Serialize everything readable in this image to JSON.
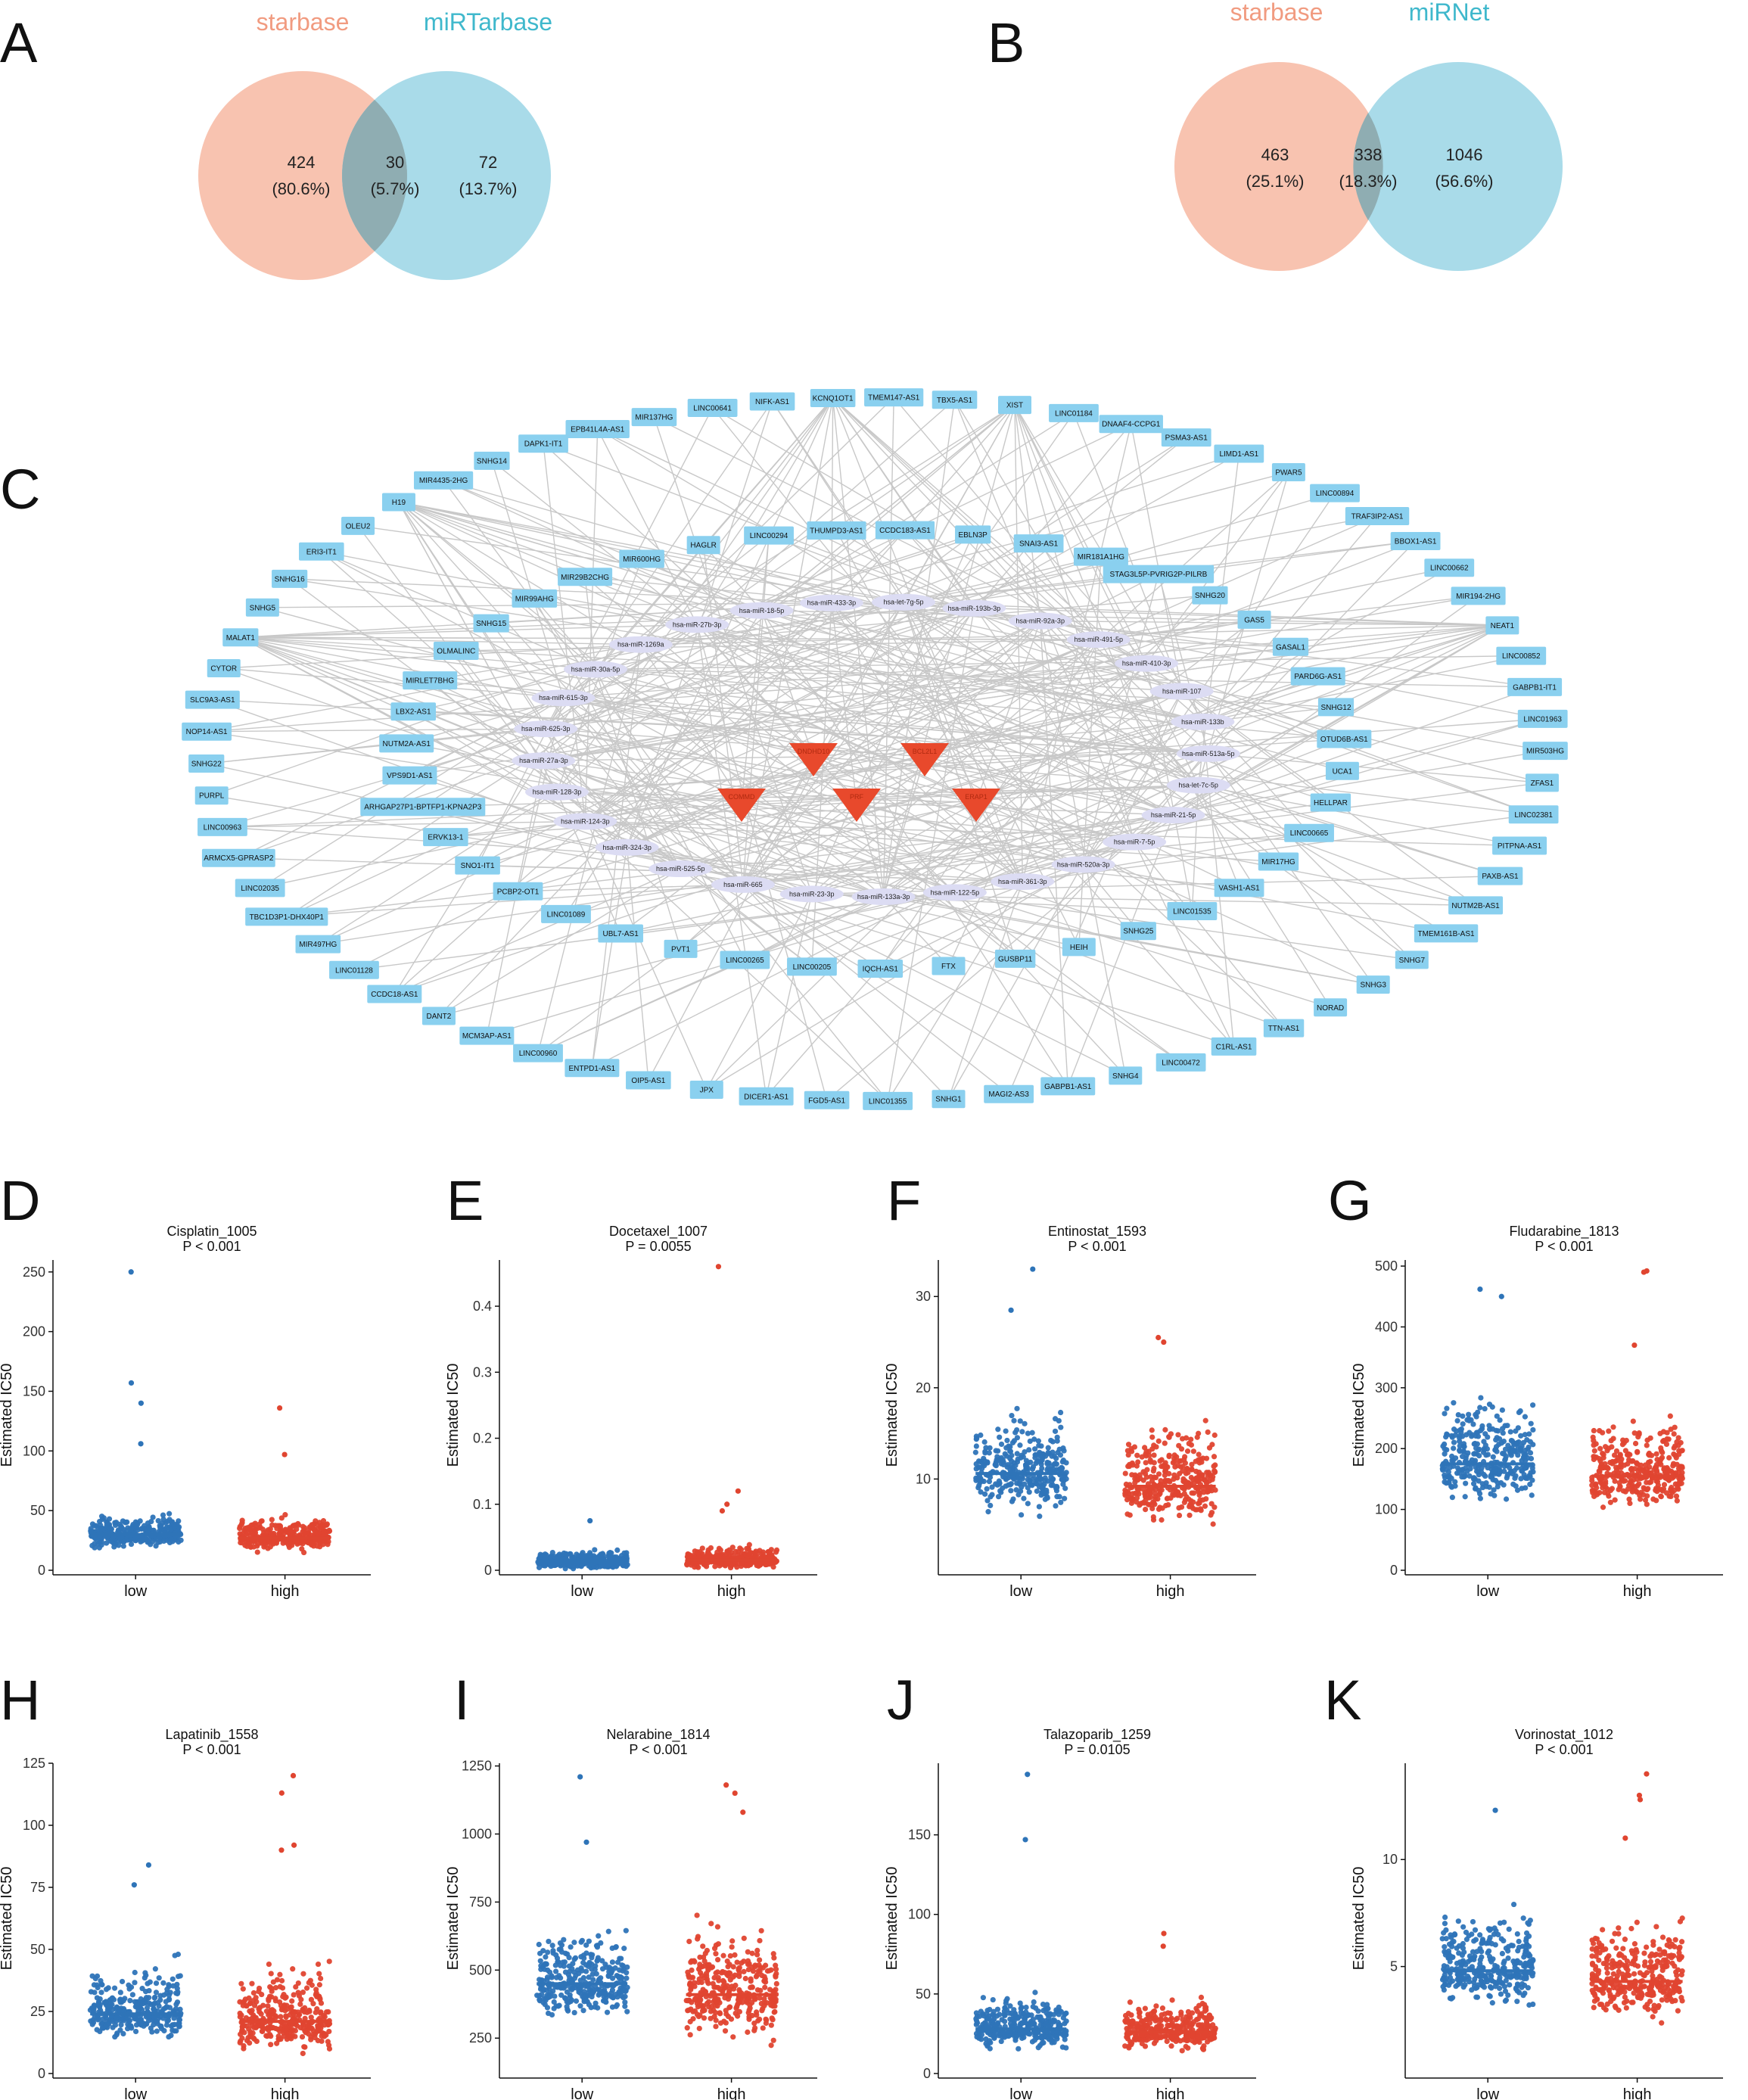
{
  "figure": {
    "panels": [
      "A",
      "B",
      "C",
      "D",
      "E",
      "F",
      "G",
      "H",
      "I",
      "J",
      "K"
    ],
    "colors": {
      "left": "#f8c3b0",
      "right": "#a9dbe9",
      "overlap": "#8fadb2",
      "low": "#2e74b8",
      "high": "#e04530",
      "node": "#8ad0ef",
      "mirna": "#dcdcf3",
      "gene": "#e8492c",
      "edge": "#c8c8c8"
    }
  },
  "venn": [
    {
      "panel": "A",
      "left_title": "starbase",
      "right_title": "miRTarbase",
      "left_count": "424",
      "left_pct": "(80.6%)",
      "mid_count": "30",
      "mid_pct": "(5.7%)",
      "right_count": "72",
      "right_pct": "(13.7%)"
    },
    {
      "panel": "B",
      "left_title": "starbase",
      "right_title": "miRNet",
      "left_count": "463",
      "left_pct": "(25.1%)",
      "mid_count": "338",
      "mid_pct": "(18.3%)",
      "right_count": "1046",
      "right_pct": "(56.6%)"
    }
  ],
  "network": {
    "outer_nodes": [
      "XIST",
      "LINC01184",
      "DNAAF4-CCPG1",
      "PSMA3-AS1",
      "LIMD1-AS1",
      "PWAR5",
      "LINC00894",
      "TRAF3IP2-AS1",
      "BBOX1-AS1",
      "LINC00662",
      "MIR194-2HG",
      "NEAT1",
      "LINC00852",
      "GABPB1-IT1",
      "LINC01963",
      "MIR503HG",
      "ZFAS1",
      "LINC02381",
      "PITPNA-AS1",
      "PAXB-AS1",
      "NUTM2B-AS1",
      "TMEM161B-AS1",
      "SNHG7",
      "SNHG3",
      "NORAD",
      "TTN-AS1",
      "C1RL-AS1",
      "LINC00472",
      "SNHG4",
      "GABPB1-AS1",
      "MAGI2-AS3",
      "SNHG1",
      "LINC01355",
      "FGD5-AS1",
      "DICER1-AS1",
      "JPX",
      "OIP5-AS1",
      "ENTPD1-AS1",
      "LINC00960",
      "MCM3AP-AS1",
      "DANT2",
      "CCDC18-AS1",
      "LINC01128",
      "MIR497HG",
      "TBC1D3P1-DHX40P1",
      "LINC02035",
      "ARMCX5-GPRASP2",
      "LINC00963",
      "PURPL",
      "SNHG22",
      "NOP14-AS1",
      "SLC9A3-AS1",
      "CYTOR",
      "MALAT1",
      "SNHG5",
      "SNHG16",
      "ERI3-IT1",
      "OLEU2",
      "H19",
      "MIR4435-2HG",
      "SNHG14",
      "DAPK1-IT1",
      "EPB41L4A-AS1",
      "MIR137HG",
      "LINC00641",
      "NIFK-AS1",
      "KCNQ1OT1",
      "TMEM147-AS1",
      "TBX5-AS1"
    ],
    "inner_nodes": [
      "SNHG15",
      "MIR99AHG",
      "MIR29B2CHG",
      "MIR600HG",
      "HAGLR",
      "LINC00294",
      "THUMPD3-AS1",
      "CCDC183-AS1",
      "EBLN3P",
      "SNAI3-AS1",
      "MIR181A1HG",
      "STAG3L5P-PVRIG2P-PILRB",
      "SNHG20",
      "GAS5",
      "GASAL1",
      "PARD6G-AS1",
      "SNHG12",
      "OTUD6B-AS1",
      "UCA1",
      "HELLPAR",
      "LINC00665",
      "MIR17HG",
      "VASH1-AS1",
      "LINC01535",
      "SNHG25",
      "HEIH",
      "GUSBP11",
      "FTX",
      "IQCH-AS1",
      "LINC00205",
      "LINC00265",
      "PVT1",
      "UBL7-AS1",
      "LINC01089",
      "PCBP2-OT1",
      "SNO1-IT1",
      "ERVK13-1",
      "ARHGAP27P1-BPTFP1-KPNA2P3",
      "VPS9D1-AS1",
      "NUTM2A-AS1",
      "LBX2-AS1",
      "MIRLET7BHG",
      "OLMALINC"
    ],
    "mirnas": [
      "hsa-miR-18-5p",
      "hsa-miR-433-3p",
      "hsa-let-7g-5p",
      "hsa-miR-193b-3p",
      "hsa-miR-92a-3p",
      "hsa-miR-491-5p",
      "hsa-miR-410-3p",
      "hsa-miR-107",
      "hsa-miR-133b",
      "hsa-miR-513a-5p",
      "hsa-let-7c-5p",
      "hsa-miR-21-5p",
      "hsa-miR-7-5p",
      "hsa-miR-520a-3p",
      "hsa-miR-361-3p",
      "hsa-miR-122-5p",
      "hsa-miR-133a-3p",
      "hsa-miR-23-3p",
      "hsa-miR-665",
      "hsa-miR-525-5p",
      "hsa-miR-324-3p",
      "hsa-miR-124-3p",
      "hsa-miR-128-3p",
      "hsa-miR-27a-3p",
      "hsa-miR-625-3p",
      "hsa-miR-615-3p",
      "hsa-miR-30a-5p",
      "hsa-miR-1269a",
      "hsa-miR-27b-3p"
    ],
    "genes": [
      "DNDHD10",
      "BCL2L1",
      "COMMD",
      "PRF",
      "ERAP1"
    ]
  },
  "chart_data": [
    {
      "panel": "D",
      "type": "scatter",
      "title": "Cisplatin_1005",
      "subtitle": "P < 0.001",
      "ylabel": "Estimated IC50",
      "categories": [
        "low",
        "high"
      ],
      "ylim": [
        0,
        260
      ],
      "yticks": [
        0,
        50,
        100,
        150,
        200,
        250
      ],
      "medians": [
        30,
        27
      ],
      "outliers": [
        [
          0,
          250
        ],
        [
          0,
          157
        ],
        [
          0,
          140
        ],
        [
          1,
          136
        ],
        [
          0,
          106
        ],
        [
          1,
          97
        ]
      ],
      "spread": [
        [
          0,
          70
        ],
        [
          0,
          65
        ]
      ]
    },
    {
      "panel": "E",
      "type": "scatter",
      "title": "Docetaxel_1007",
      "subtitle": "P = 0.0055",
      "ylabel": "Estimated IC50",
      "categories": [
        "low",
        "high"
      ],
      "ylim": [
        0,
        0.47
      ],
      "yticks": [
        0.0,
        0.1,
        0.2,
        0.3,
        0.4
      ],
      "medians": [
        0.012,
        0.015
      ],
      "outliers": [
        [
          1,
          0.46
        ],
        [
          1,
          0.12
        ],
        [
          1,
          0.1
        ],
        [
          0,
          0.075
        ],
        [
          1,
          0.09
        ]
      ],
      "spread": [
        [
          0,
          0.05
        ],
        [
          0,
          0.06
        ]
      ]
    },
    {
      "panel": "F",
      "type": "scatter",
      "title": "Entinostat_1593",
      "subtitle": "P < 0.001",
      "ylabel": "Estimated IC50",
      "categories": [
        "low",
        "high"
      ],
      "ylim": [
        0,
        34
      ],
      "yticks": [
        10,
        20,
        30
      ],
      "medians": [
        10.6,
        9.2
      ],
      "outliers": [
        [
          0,
          33
        ],
        [
          0,
          28.5
        ],
        [
          1,
          25.5
        ],
        [
          1,
          25
        ]
      ],
      "spread": [
        [
          3.5,
          26
        ],
        [
          3,
          24
        ]
      ]
    },
    {
      "panel": "G",
      "type": "scatter",
      "title": "Fludarabine_1813",
      "subtitle": "P < 0.001",
      "ylabel": "Estimated IC50",
      "categories": [
        "low",
        "high"
      ],
      "ylim": [
        0,
        510
      ],
      "yticks": [
        0,
        100,
        200,
        300,
        400,
        500
      ],
      "medians": [
        175,
        155
      ],
      "outliers": [
        [
          0,
          462
        ],
        [
          0,
          450
        ],
        [
          1,
          492
        ],
        [
          1,
          490
        ],
        [
          1,
          370
        ]
      ],
      "spread": [
        [
          40,
          420
        ],
        [
          20,
          360
        ]
      ]
    },
    {
      "panel": "H",
      "type": "scatter",
      "title": "Lapatinib_1558",
      "subtitle": "P < 0.001",
      "ylabel": "Estimated IC50",
      "categories": [
        "low",
        "high"
      ],
      "ylim": [
        0,
        125
      ],
      "yticks": [
        0,
        25,
        50,
        75,
        100,
        125
      ],
      "medians": [
        24,
        21
      ],
      "outliers": [
        [
          1,
          120
        ],
        [
          1,
          113
        ],
        [
          1,
          92
        ],
        [
          0,
          84
        ],
        [
          0,
          76
        ],
        [
          1,
          90
        ]
      ],
      "spread": [
        [
          2,
          66
        ],
        [
          1,
          70
        ]
      ]
    },
    {
      "panel": "I",
      "type": "scatter",
      "title": "Nelarabine_1814",
      "subtitle": "P < 0.001",
      "ylabel": "Estimated IC50",
      "categories": [
        "low",
        "high"
      ],
      "ylim": [
        120,
        1260
      ],
      "yticks": [
        250,
        500,
        750,
        1000,
        1250
      ],
      "medians": [
        450,
        410
      ],
      "outliers": [
        [
          0,
          1210
        ],
        [
          1,
          1180
        ],
        [
          1,
          1150
        ],
        [
          1,
          1080
        ],
        [
          0,
          970
        ]
      ],
      "spread": [
        [
          180,
          900
        ],
        [
          150,
          1000
        ]
      ]
    },
    {
      "panel": "J",
      "type": "scatter",
      "title": "Talazoparib_1259",
      "subtitle": "P = 0.0105",
      "ylabel": "Estimated IC50",
      "categories": [
        "low",
        "high"
      ],
      "ylim": [
        0,
        195
      ],
      "yticks": [
        0,
        50,
        100,
        150
      ],
      "medians": [
        28,
        26
      ],
      "outliers": [
        [
          0,
          188
        ],
        [
          0,
          147
        ],
        [
          1,
          88
        ],
        [
          1,
          80
        ]
      ],
      "spread": [
        [
          0,
          74
        ],
        [
          0,
          70
        ]
      ]
    },
    {
      "panel": "K",
      "type": "scatter",
      "title": "Vorinostat_1012",
      "subtitle": "P < 0.001",
      "ylabel": "Estimated IC50",
      "categories": [
        "low",
        "high"
      ],
      "ylim": [
        0,
        14.5
      ],
      "yticks": [
        5,
        10
      ],
      "medians": [
        4.8,
        4.3
      ],
      "outliers": [
        [
          1,
          14
        ],
        [
          0,
          12.3
        ],
        [
          1,
          13
        ],
        [
          1,
          12.8
        ],
        [
          1,
          11
        ]
      ],
      "spread": [
        [
          1.3,
          11
        ],
        [
          0.6,
          11
        ]
      ]
    }
  ]
}
